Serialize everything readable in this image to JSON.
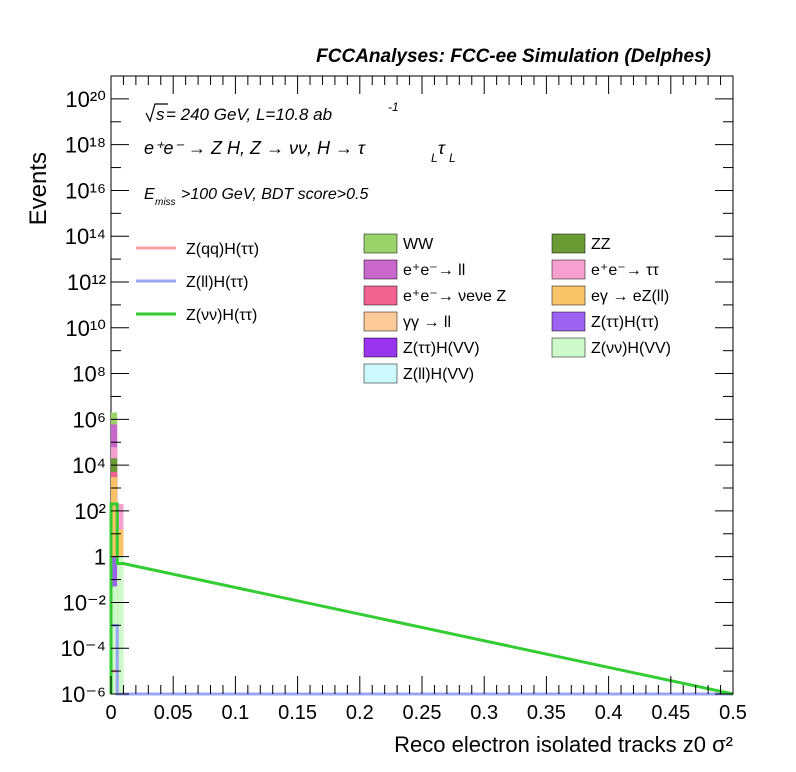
{
  "header": {
    "title": "FCCAnalyses: FCC-ee Simulation (Delphes)"
  },
  "annotations": {
    "energy_prefix": "s",
    "energy_text": " = 240 GeV, L=10.8 ab",
    "energy_exp": "-1",
    "process": "e⁺e⁻ → Z H, Z → νν, H → τ",
    "process_sub1": "L",
    "process_tau": "τ",
    "process_sub2": "L",
    "cut_prefix": "E",
    "cut_sub": "miss",
    "cut_text": ">100 GeV, BDT score>0.5"
  },
  "legend": {
    "signals": [
      {
        "label": "Z(qq)H(ττ)",
        "color": "#f4a3a3"
      },
      {
        "label": "Z(ll)H(ττ)",
        "color": "#9aa4f6"
      },
      {
        "label": "Z(νν)H(ττ)",
        "color": "#33cc33"
      }
    ],
    "backgrounds": [
      {
        "label": "WW",
        "color": "#99d36a"
      },
      {
        "label": "ZZ",
        "color": "#6a9a34"
      },
      {
        "label": "e⁺e⁻→ ll",
        "color": "#c967cb"
      },
      {
        "label": "e⁺e⁻→ ττ",
        "color": "#f6a0cf"
      },
      {
        "label": "e⁺e⁻→ νeνe Z",
        "color": "#f36392"
      },
      {
        "label": "eγ → eZ(ll)",
        "color": "#f8c467"
      },
      {
        "label": "γγ → ll",
        "color": "#fdca9a"
      },
      {
        "label": "Z(ττ)H(ττ)",
        "color": "#9c63f1"
      },
      {
        "label": "Z(ττ)H(VV)",
        "color": "#9a34ee"
      },
      {
        "label": "Z(νν)H(VV)",
        "color": "#cdf9cb"
      },
      {
        "label": "Z(ll)H(VV)",
        "color": "#cdf9fc"
      }
    ]
  },
  "chart_data": {
    "type": "bar",
    "subtype": "stacked-histogram-log",
    "title": "FCCAnalyses: FCC-ee Simulation (Delphes)",
    "xlabel": "Reco electron isolated tracks z0 σ²",
    "ylabel": "Events",
    "xlim": [
      0,
      0.5
    ],
    "ylim": [
      1e-06,
      1e+21
    ],
    "yscale": "log",
    "x_ticks": [
      "0",
      "0.05",
      "0.1",
      "0.15",
      "0.2",
      "0.25",
      "0.3",
      "0.35",
      "0.4",
      "0.45",
      "0.5"
    ],
    "y_ticks": [
      "10⁻⁶",
      "10⁻⁴",
      "10⁻²",
      "1",
      "10²",
      "10⁴",
      "10⁶",
      "10⁸",
      "10¹⁰",
      "10¹²",
      "10¹⁴",
      "10¹⁶",
      "10¹⁸",
      "10²⁰"
    ],
    "bin_width": 0.005,
    "stacked_bins": [
      {
        "x0": 0.0,
        "segments": [
          {
            "name": "Z(νν)H(VV)",
            "color": "#cdf9cb",
            "top": 0.05
          },
          {
            "name": "Z(ττ)H(ττ)",
            "color": "#9c63f1",
            "top": 1
          },
          {
            "name": "eγ → eZ(ll)",
            "color": "#f8c467",
            "top": 3000
          },
          {
            "name": "e⁺e⁻→ νeνe Z",
            "color": "#f36392",
            "top": 5000
          },
          {
            "name": "ZZ",
            "color": "#6a9a34",
            "top": 20000
          },
          {
            "name": "e⁺e⁻→ ττ",
            "color": "#f6a0cf",
            "top": 60000
          },
          {
            "name": "e⁺e⁻→ ll",
            "color": "#c967cb",
            "top": 600000
          },
          {
            "name": "WW",
            "color": "#99d36a",
            "top": 2000000
          }
        ]
      },
      {
        "x0": 0.005,
        "segments": [
          {
            "name": "Z(νν)H(VV)",
            "color": "#cdf9cb",
            "top": 1
          },
          {
            "name": "eγ → eZ(ll)",
            "color": "#f8c467",
            "top": 15
          },
          {
            "name": "e⁺e⁻→ ττ",
            "color": "#f6a0cf",
            "top": 200
          }
        ]
      }
    ],
    "signal_lines": [
      {
        "name": "Z(qq)H(ττ)",
        "color": "#f4a3a3",
        "bins": [
          1e-05,
          0.0
        ]
      },
      {
        "name": "Z(ll)H(ττ)",
        "color": "#9aa4f6",
        "bins": [
          0.001,
          0.0
        ]
      },
      {
        "name": "Z(νν)H(ττ)",
        "color": "#33cc33",
        "bins": [
          200,
          0.5
        ]
      }
    ]
  }
}
